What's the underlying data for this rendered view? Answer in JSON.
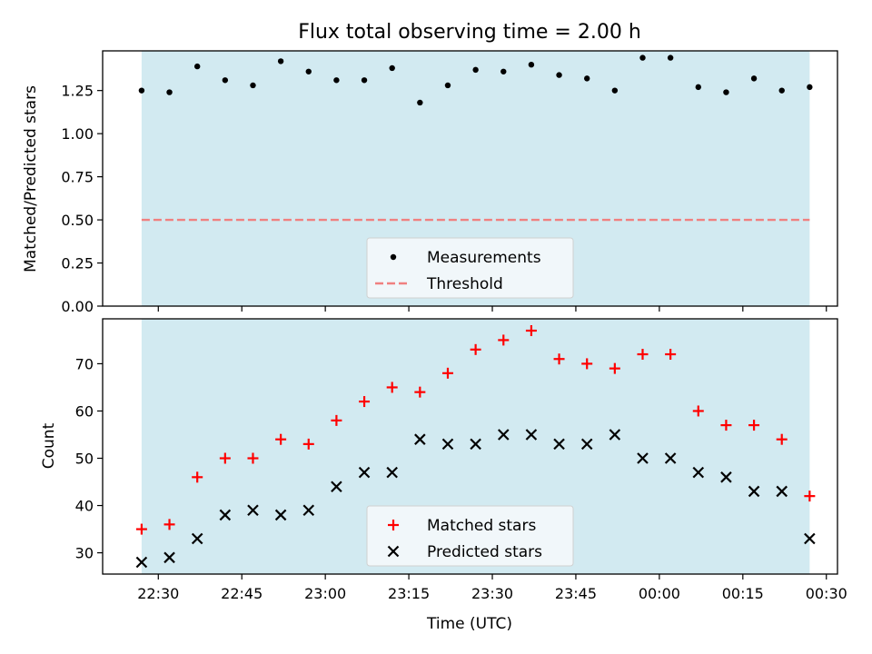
{
  "figure": {
    "title": "Flux total observing time = 2.00 h"
  },
  "colors": {
    "shade": "#add8e6",
    "matched": "#ff0000",
    "predicted": "#000000",
    "measurement": "#000000",
    "threshold": "#f08080"
  },
  "chart_data": [
    {
      "type": "scatter",
      "ylabel": "Matched/Predicted stars",
      "ylim": [
        0,
        1.48
      ],
      "yticks": [
        0.0,
        0.25,
        0.5,
        0.75,
        1.0,
        1.25
      ],
      "ytick_labels": [
        "0.00",
        "0.25",
        "0.50",
        "0.75",
        "1.00",
        "1.25"
      ],
      "xlim": [
        "22:20",
        "00:32"
      ],
      "x_tick_labels_shown": false,
      "grid": false,
      "legend_position": "bottom-center",
      "shaded_span": [
        "22:27",
        "00:27"
      ],
      "x": [
        "22:27",
        "22:32",
        "22:37",
        "22:42",
        "22:47",
        "22:52",
        "22:57",
        "23:02",
        "23:07",
        "23:12",
        "23:17",
        "23:22",
        "23:27",
        "23:32",
        "23:37",
        "23:42",
        "23:47",
        "23:52",
        "23:57",
        "00:02",
        "00:07",
        "00:12",
        "00:17",
        "00:22",
        "00:27"
      ],
      "series": [
        {
          "name": "Measurements",
          "marker": "dot",
          "values": [
            1.25,
            1.24,
            1.39,
            1.31,
            1.28,
            1.42,
            1.36,
            1.31,
            1.31,
            1.38,
            1.18,
            1.28,
            1.37,
            1.36,
            1.4,
            1.34,
            1.32,
            1.25,
            1.44,
            1.44,
            1.27,
            1.24,
            1.32,
            1.25,
            1.27
          ]
        },
        {
          "name": "Threshold",
          "marker": "dashed-line",
          "x": [
            "22:27",
            "00:27"
          ],
          "values": [
            0.5,
            0.5
          ]
        }
      ]
    },
    {
      "type": "scatter",
      "xlabel": "Time (UTC)",
      "ylabel": "Count",
      "ylim": [
        25.5,
        79.5
      ],
      "yticks": [
        30,
        40,
        50,
        60,
        70
      ],
      "ytick_labels": [
        "30",
        "40",
        "50",
        "60",
        "70"
      ],
      "xlim": [
        "22:20",
        "00:32"
      ],
      "xticks": [
        "22:30",
        "22:45",
        "23:00",
        "23:15",
        "23:30",
        "23:45",
        "00:00",
        "00:15",
        "00:30"
      ],
      "grid": false,
      "legend_position": "bottom-center",
      "shaded_span": [
        "22:27",
        "00:27"
      ],
      "x": [
        "22:27",
        "22:32",
        "22:37",
        "22:42",
        "22:47",
        "22:52",
        "22:57",
        "23:02",
        "23:07",
        "23:12",
        "23:17",
        "23:22",
        "23:27",
        "23:32",
        "23:37",
        "23:42",
        "23:47",
        "23:52",
        "23:57",
        "00:02",
        "00:07",
        "00:12",
        "00:17",
        "00:22",
        "00:27"
      ],
      "series": [
        {
          "name": "Matched stars",
          "marker": "plus",
          "values": [
            35,
            36,
            46,
            50,
            50,
            54,
            53,
            58,
            62,
            65,
            64,
            68,
            73,
            75,
            77,
            71,
            70,
            69,
            72,
            72,
            60,
            57,
            57,
            54,
            42
          ]
        },
        {
          "name": "Predicted stars",
          "marker": "cross",
          "values": [
            28,
            29,
            33,
            38,
            39,
            38,
            39,
            44,
            47,
            47,
            54,
            53,
            53,
            55,
            55,
            53,
            53,
            55,
            50,
            50,
            47,
            46,
            43,
            43,
            33
          ]
        }
      ]
    }
  ]
}
